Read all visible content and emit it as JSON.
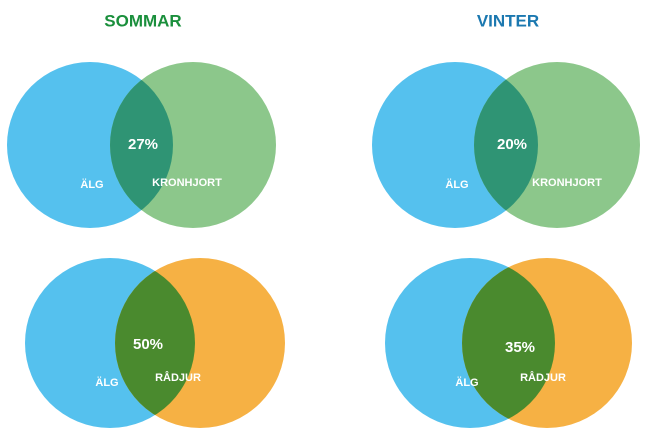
{
  "columns": [
    {
      "title": "SOMMAR"
    },
    {
      "title": "VINTER"
    }
  ],
  "panels": [
    {
      "overlap": "27%",
      "left": "ÄLG",
      "right": "KRONHJORT"
    },
    {
      "overlap": "20%",
      "left": "ÄLG",
      "right": "KRONHJORT"
    },
    {
      "overlap": "50%",
      "left": "ÄLG",
      "right": "RÅDJUR"
    },
    {
      "overlap": "35%",
      "left": "ÄLG",
      "right": "RÅDJUR"
    }
  ]
}
